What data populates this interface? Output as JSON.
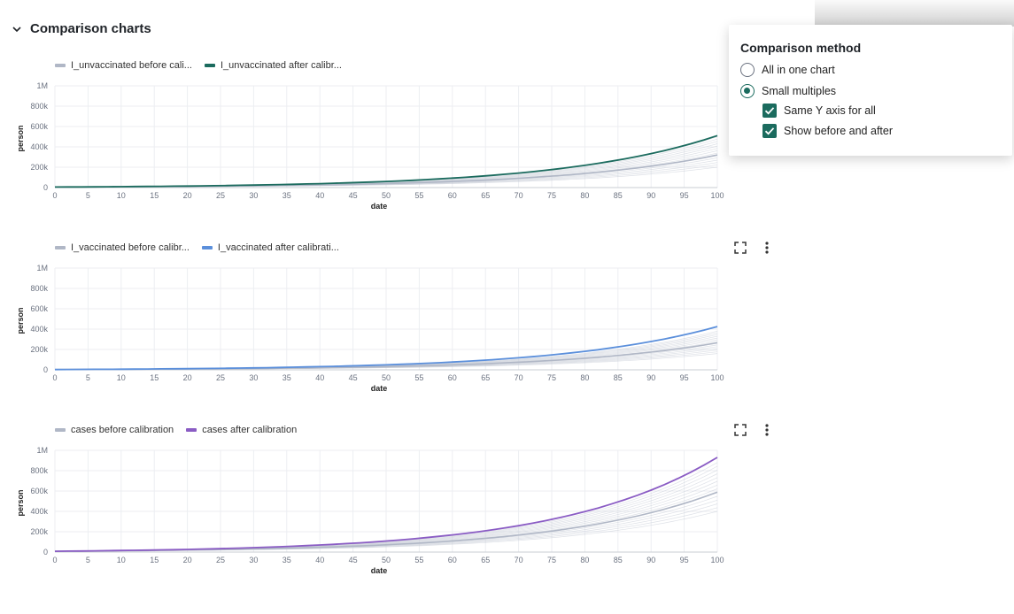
{
  "section": {
    "title": "Comparison charts",
    "collapse_icon": "chevron-down-icon"
  },
  "popover": {
    "title": "Comparison method",
    "options": [
      {
        "label": "All in one chart",
        "selected": false
      },
      {
        "label": "Small multiples",
        "selected": true
      }
    ],
    "checkboxes": [
      {
        "label": "Same Y axis for all",
        "checked": true
      },
      {
        "label": "Show before and after",
        "checked": true
      }
    ],
    "accent_color": "#1b6b5e"
  },
  "chart_actions": {
    "expand_icon": "expand-icon",
    "more_icon": "more-vertical-icon"
  },
  "chart_data": [
    {
      "type": "line",
      "legend": [
        "I_unvaccinated before cali...",
        "I_unvaccinated after calibr..."
      ],
      "colors": [
        "#b0b7c6",
        "#1b6b5e"
      ],
      "xlabel": "date",
      "ylabel": "person",
      "xlim": [
        0,
        100
      ],
      "ylim": [
        0,
        1000000
      ],
      "x_ticks": [
        "0",
        "5",
        "10",
        "15",
        "20",
        "25",
        "30",
        "35",
        "40",
        "45",
        "50",
        "55",
        "60",
        "65",
        "70",
        "75",
        "80",
        "85",
        "90",
        "95",
        "100"
      ],
      "y_ticks": [
        "0",
        "200k",
        "400k",
        "600k",
        "800k",
        "1M"
      ],
      "grid": true,
      "series": [
        {
          "name": "I_unvaccinated before calibration",
          "start": 5000,
          "end": 320000,
          "band_low": 200000,
          "band_high": 500000
        },
        {
          "name": "I_unvaccinated after calibration",
          "start": 5000,
          "end": 510000
        }
      ]
    },
    {
      "type": "line",
      "legend": [
        "I_vaccinated before calibr...",
        "I_vaccinated after calibrati..."
      ],
      "colors": [
        "#b0b7c6",
        "#5b8fdb"
      ],
      "xlabel": "date",
      "ylabel": "person",
      "xlim": [
        0,
        100
      ],
      "ylim": [
        0,
        1000000
      ],
      "x_ticks": [
        "0",
        "5",
        "10",
        "15",
        "20",
        "25",
        "30",
        "35",
        "40",
        "45",
        "50",
        "55",
        "60",
        "65",
        "70",
        "75",
        "80",
        "85",
        "90",
        "95",
        "100"
      ],
      "y_ticks": [
        "0",
        "200k",
        "400k",
        "600k",
        "800k",
        "1M"
      ],
      "grid": true,
      "series": [
        {
          "name": "I_vaccinated before calibration",
          "start": 3000,
          "end": 265000,
          "band_low": 160000,
          "band_high": 380000
        },
        {
          "name": "I_vaccinated after calibration",
          "start": 3000,
          "end": 425000
        }
      ]
    },
    {
      "type": "line",
      "legend": [
        "cases before calibration",
        "cases after calibration"
      ],
      "colors": [
        "#b0b7c6",
        "#8a5cc4"
      ],
      "xlabel": "date",
      "ylabel": "person",
      "xlim": [
        0,
        100
      ],
      "ylim": [
        0,
        1000000
      ],
      "x_ticks": [
        "0",
        "5",
        "10",
        "15",
        "20",
        "25",
        "30",
        "35",
        "40",
        "45",
        "50",
        "55",
        "60",
        "65",
        "70",
        "75",
        "80",
        "85",
        "90",
        "95",
        "100"
      ],
      "y_ticks": [
        "0",
        "200k",
        "400k",
        "600k",
        "800k",
        "1M"
      ],
      "grid": true,
      "series": [
        {
          "name": "cases before calibration",
          "start": 8000,
          "end": 590000,
          "band_low": 400000,
          "band_high": 880000
        },
        {
          "name": "cases after calibration",
          "start": 8000,
          "end": 930000
        }
      ]
    }
  ]
}
